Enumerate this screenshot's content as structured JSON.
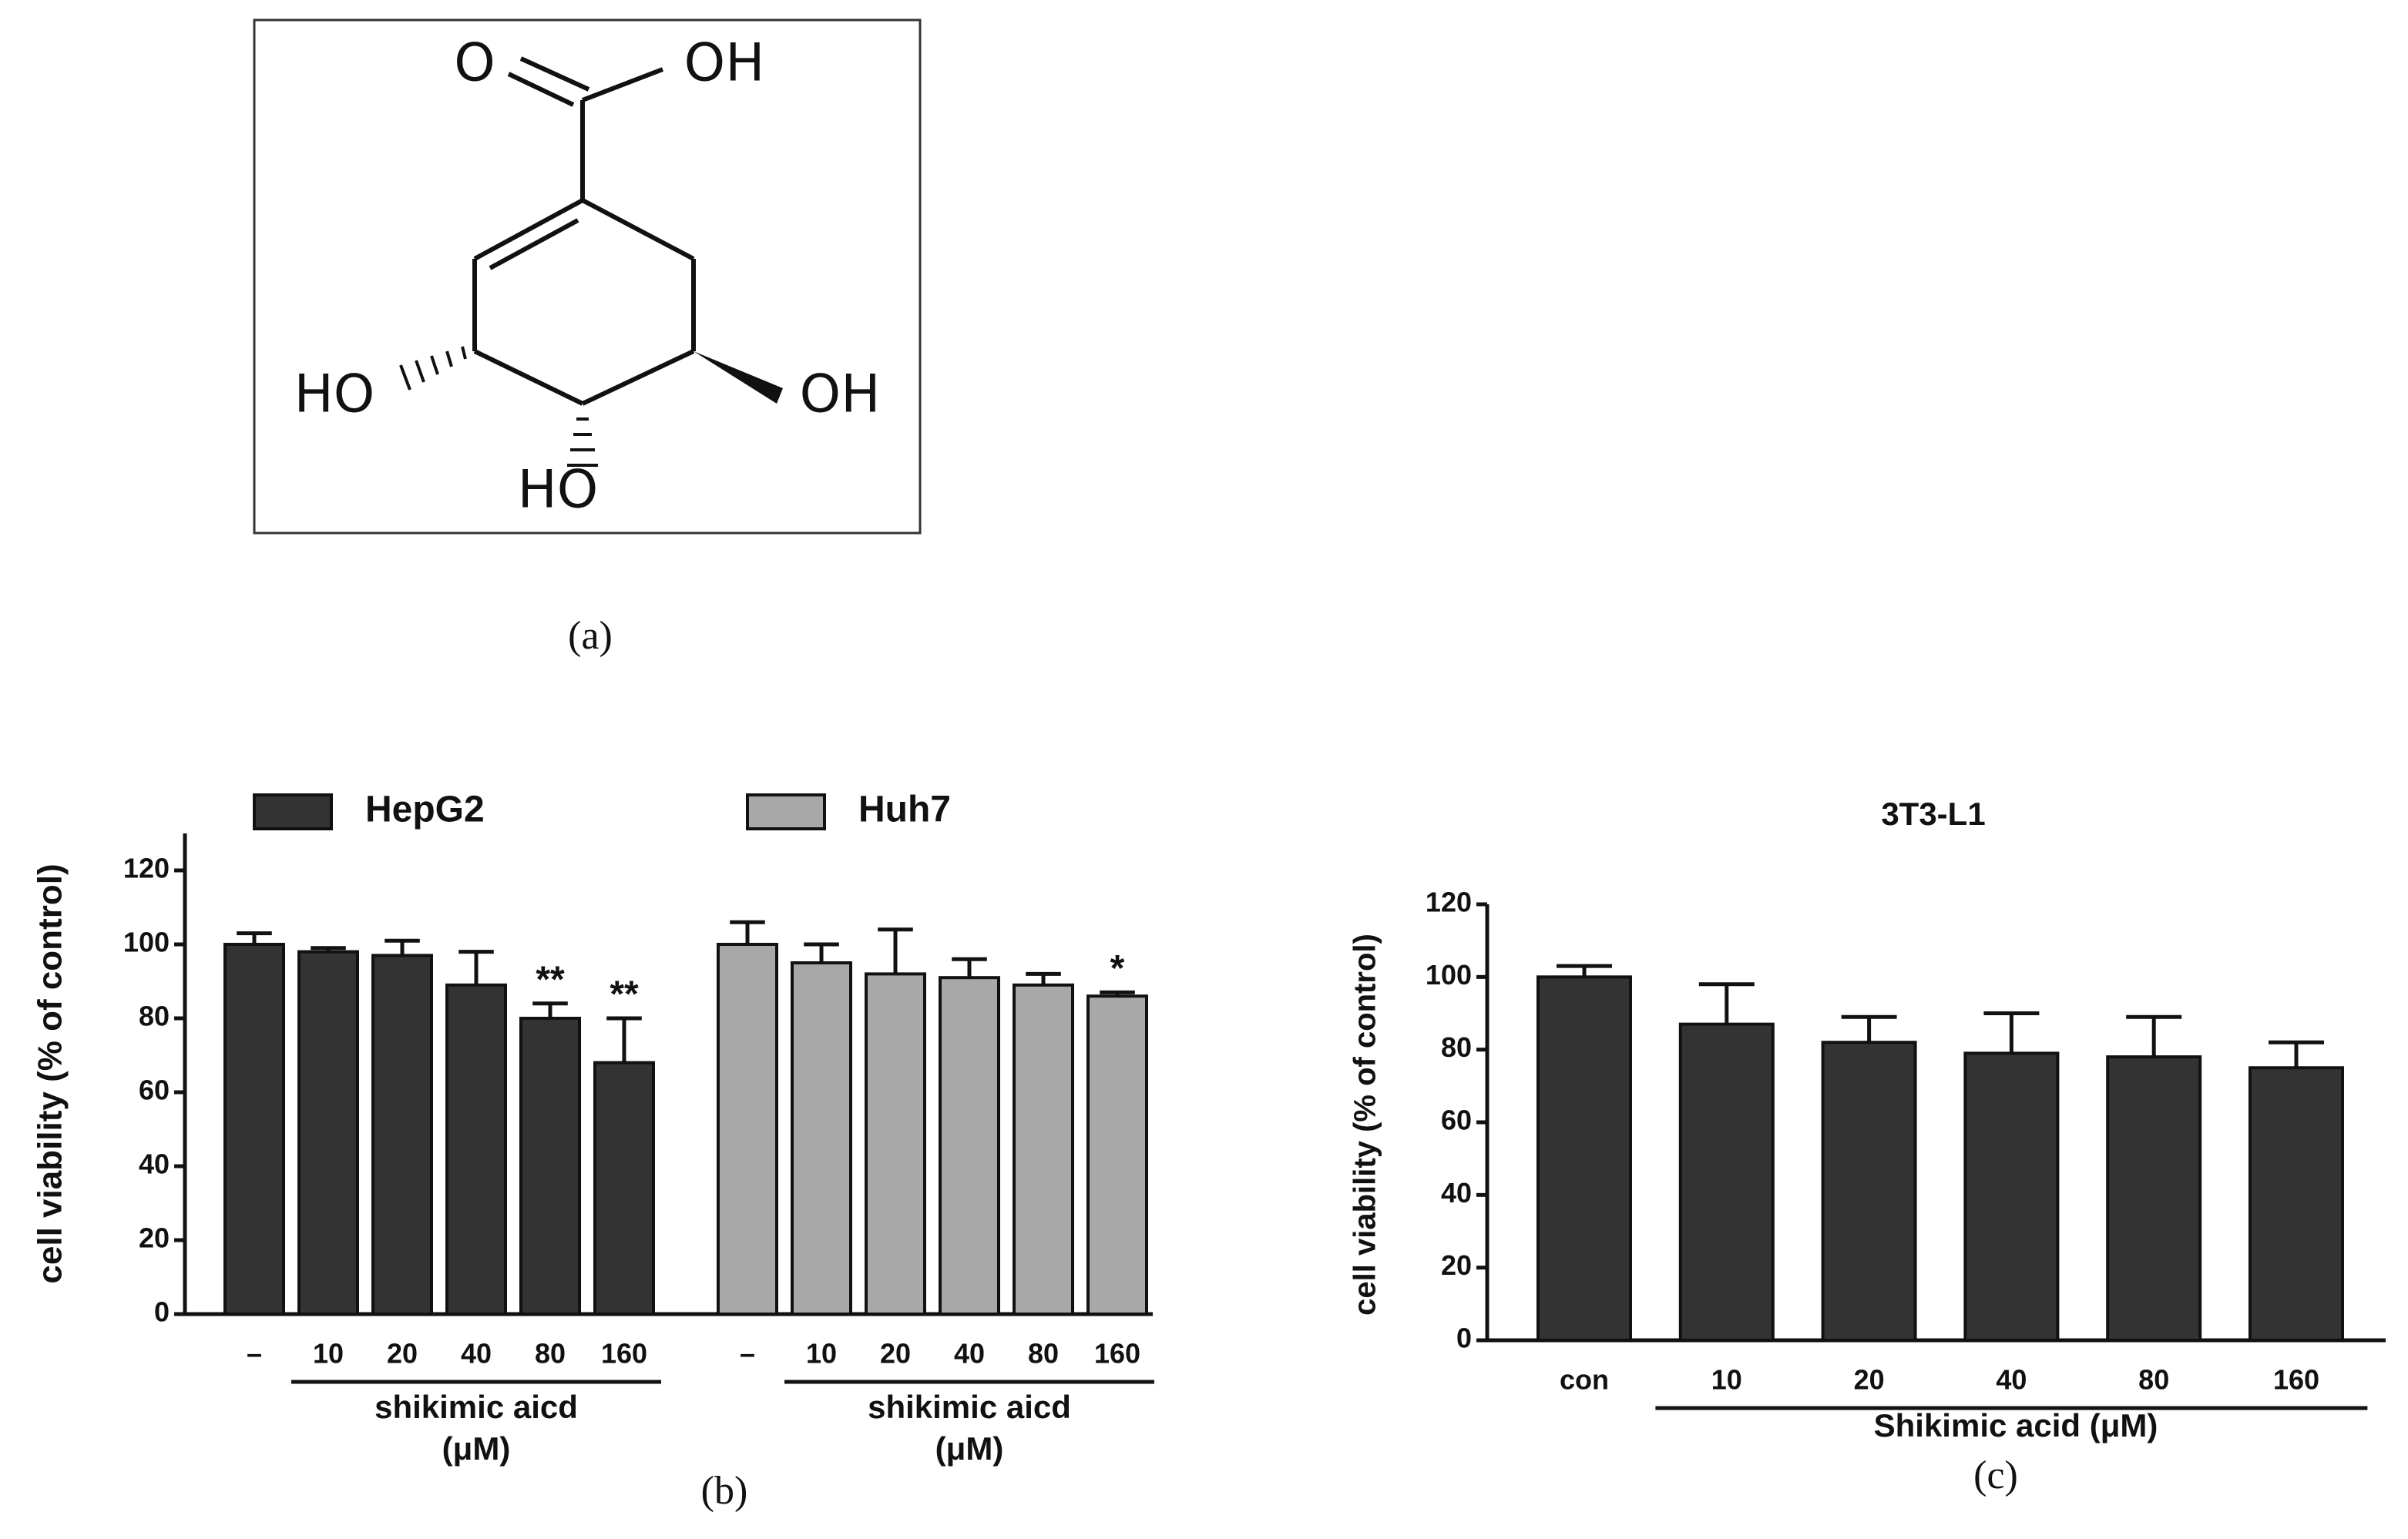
{
  "molecule": {
    "labels": [
      "O",
      "OH",
      "HO",
      "OH",
      "HO"
    ]
  },
  "panels": [
    "(a)",
    "(b)",
    "(c)"
  ],
  "chart_data": [
    {
      "type": "bar",
      "ylabel": "cell viability (% of control)",
      "categories": [
        "–",
        "10",
        "20",
        "40",
        "80",
        "160"
      ],
      "group_label": [
        "shikimic aicd",
        "(μM)"
      ],
      "ylim": [
        0,
        130
      ],
      "yticks": [
        0,
        20,
        40,
        60,
        80,
        100,
        120
      ],
      "series": [
        {
          "name": "HepG2",
          "color": "#333333",
          "values": [
            100,
            98,
            97,
            89,
            80,
            68
          ],
          "errors": [
            3,
            1,
            4,
            9,
            4,
            12
          ],
          "annotations": [
            null,
            null,
            null,
            null,
            "**",
            "**"
          ]
        },
        {
          "name": "Huh7",
          "color": "#a8a8a8",
          "values": [
            100,
            95,
            92,
            91,
            89,
            86
          ],
          "errors": [
            6,
            5,
            12,
            5,
            3,
            1
          ],
          "annotations": [
            null,
            null,
            null,
            null,
            null,
            "*"
          ]
        }
      ]
    },
    {
      "type": "bar",
      "title": "3T3-L1",
      "ylabel": "cell viability (% of control)",
      "xlabel": "Shikimic acid (μM)",
      "categories": [
        "con",
        "10",
        "20",
        "40",
        "80",
        "160"
      ],
      "color": "#333333",
      "values": [
        100,
        87,
        82,
        79,
        78,
        75
      ],
      "errors": [
        3,
        11,
        7,
        11,
        11,
        7
      ],
      "ylim": [
        0,
        120
      ],
      "yticks": [
        0,
        20,
        40,
        60,
        80,
        100,
        120
      ]
    }
  ]
}
